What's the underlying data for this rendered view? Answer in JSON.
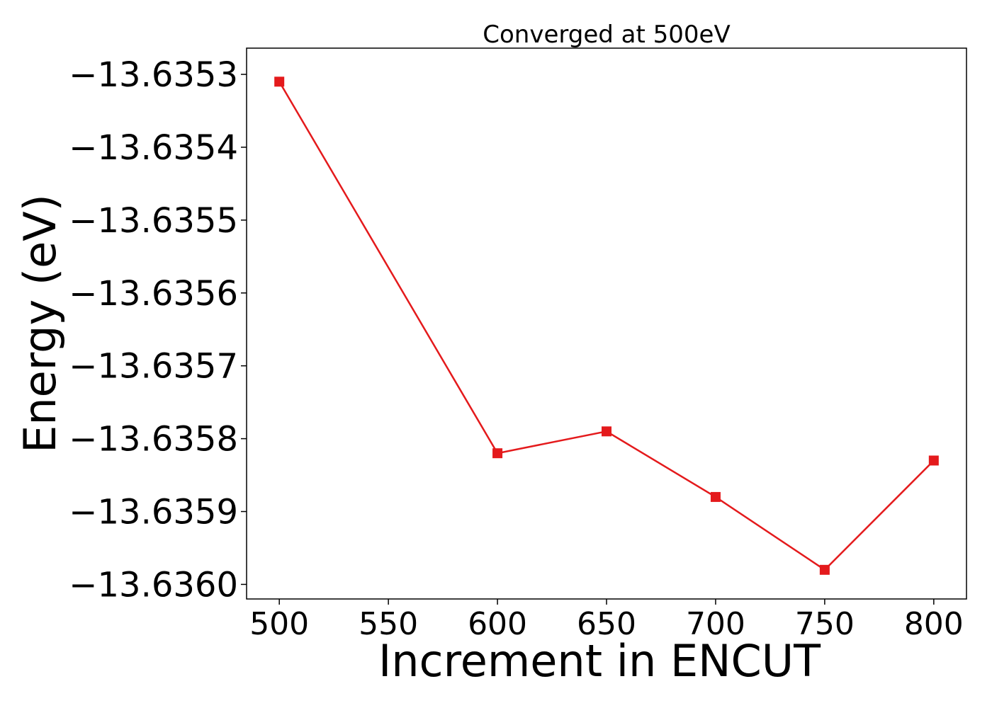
{
  "chart_data": {
    "type": "line",
    "title": "Converged at 500eV",
    "xlabel": "Increment in ENCUT",
    "ylabel": "Energy (eV)",
    "x": [
      500,
      600,
      650,
      700,
      750,
      800
    ],
    "series": [
      {
        "values": [
          -13.63531,
          -13.63582,
          -13.63579,
          -13.63588,
          -13.63598,
          -13.63583
        ],
        "color": "#e41a1c",
        "marker": "square"
      }
    ],
    "xticks": [
      500,
      550,
      600,
      650,
      700,
      750,
      800
    ],
    "xtick_labels": [
      "500",
      "550",
      "600",
      "650",
      "700",
      "750",
      "800"
    ],
    "yticks": [
      -13.6353,
      -13.6354,
      -13.6355,
      -13.6356,
      -13.6357,
      -13.6358,
      -13.6359,
      -13.636
    ],
    "ytick_labels": [
      "−13.6353",
      "−13.6354",
      "−13.6355",
      "−13.6356",
      "−13.6357",
      "−13.6358",
      "−13.6359",
      "−13.6360"
    ],
    "xlim": [
      485,
      815
    ],
    "ylim": [
      -13.63602,
      -13.635264
    ],
    "grid": false,
    "legend": false
  }
}
